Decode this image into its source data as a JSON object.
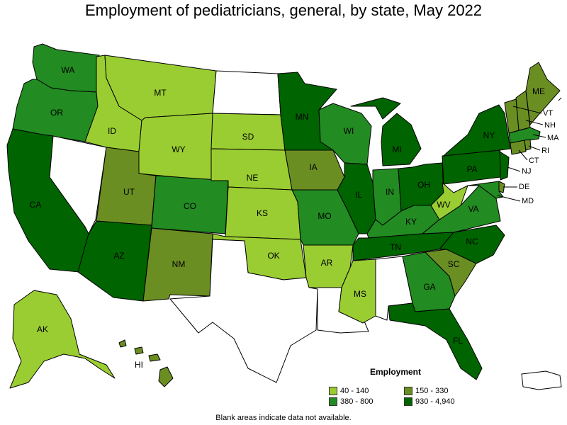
{
  "title": "Employment of pediatricians, general, by state, May 2022",
  "legend": {
    "title": "Employment",
    "items": [
      {
        "label": "40 - 140",
        "color": "#9acd32"
      },
      {
        "label": "150 - 330",
        "color": "#6b8e23"
      },
      {
        "label": "380 - 800",
        "color": "#228b22"
      },
      {
        "label": "930 - 4,940",
        "color": "#006400"
      }
    ]
  },
  "note": "Blank areas indicate data not available.",
  "state_fills": {
    "WA": "#228b22",
    "OR": "#228b22",
    "CA": "#006400",
    "NV": "#ffffff",
    "ID": "#9acd32",
    "MT": "#9acd32",
    "WY": "#9acd32",
    "UT": "#6b8e23",
    "AZ": "#006400",
    "CO": "#228b22",
    "NM": "#6b8e23",
    "ND": "#ffffff",
    "SD": "#9acd32",
    "NE": "#9acd32",
    "KS": "#9acd32",
    "OK": "#9acd32",
    "TX": "#ffffff",
    "MN": "#006400",
    "IA": "#6b8e23",
    "MO": "#228b22",
    "AR": "#9acd32",
    "LA": "#ffffff",
    "WI": "#228b22",
    "IL": "#006400",
    "MI": "#006400",
    "IN": "#228b22",
    "OH": "#006400",
    "KY": "#228b22",
    "TN": "#006400",
    "MS": "#9acd32",
    "AL": "#ffffff",
    "GA": "#228b22",
    "FL": "#006400",
    "SC": "#6b8e23",
    "NC": "#006400",
    "VA": "#228b22",
    "WV": "#9acd32",
    "PA": "#006400",
    "NY": "#006400",
    "ME": "#6b8e23",
    "VT": "#6b8e23",
    "NH": "#6b8e23",
    "MA": "#228b22",
    "RI": "#6b8e23",
    "CT": "#6b8e23",
    "NJ": "#006400",
    "DE": "#6b8e23",
    "MD": "#228b22",
    "AK": "#9acd32",
    "HI": "#6b8e23",
    "PR": "#ffffff"
  },
  "labels": {
    "WA": "WA",
    "OR": "OR",
    "CA": "CA",
    "ID": "ID",
    "MT": "MT",
    "WY": "WY",
    "UT": "UT",
    "AZ": "AZ",
    "CO": "CO",
    "NM": "NM",
    "SD": "SD",
    "NE": "NE",
    "KS": "KS",
    "OK": "OK",
    "MN": "MN",
    "IA": "IA",
    "MO": "MO",
    "AR": "AR",
    "WI": "WI",
    "IL": "IL",
    "MI": "MI",
    "IN": "IN",
    "OH": "OH",
    "KY": "KY",
    "TN": "TN",
    "MS": "MS",
    "GA": "GA",
    "FL": "FL",
    "SC": "SC",
    "NC": "NC",
    "VA": "VA",
    "WV": "WV",
    "PA": "PA",
    "NY": "NY",
    "ME": "ME",
    "AK": "AK",
    "HI": "HI",
    "VT": "VT",
    "NH": "NH",
    "MA": "MA",
    "RI": "RI",
    "CT": "CT",
    "NJ": "NJ",
    "DE": "DE",
    "MD": "MD"
  }
}
